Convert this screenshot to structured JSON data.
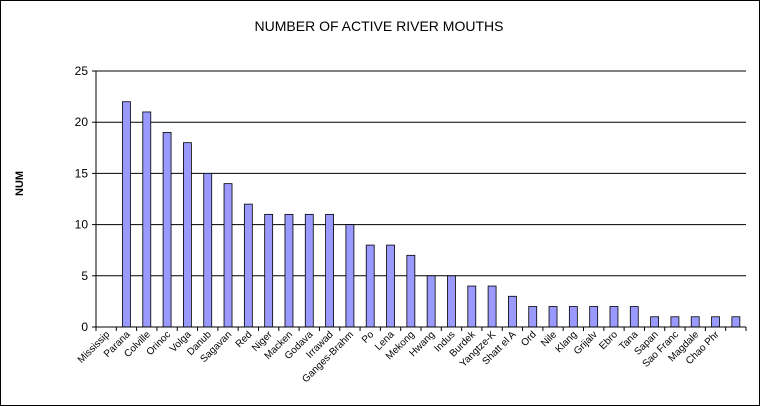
{
  "chart_data": {
    "type": "bar",
    "title": "NUMBER OF ACTIVE RIVER MOUTHS",
    "ylabel": "NUM",
    "xlabel": "",
    "ylim": [
      0,
      25
    ],
    "yticks": [
      0,
      5,
      10,
      15,
      20,
      25
    ],
    "grid": true,
    "bar_color": "#9999ff",
    "categories": [
      "Mississip",
      "Parana",
      "Colville",
      "Orinoc",
      "Volga",
      "Danub",
      "Sagavan",
      "Red",
      "Niger",
      "Macken",
      "Godava",
      "Irrawad",
      "Ganges-Brahm",
      "Po",
      "Lena",
      "Mekong",
      "Hwang",
      "Indus",
      "Burdek",
      "Yangtze-K",
      "Shatt el A",
      "Ord",
      "Nile",
      "Klang",
      "Grijalv",
      "Ebro",
      "Tana",
      "Sapan",
      "Sao Franc",
      "Magdale",
      "Chao Phr",
      ""
    ],
    "values": [
      0,
      22,
      21,
      19,
      18,
      15,
      14,
      12,
      11,
      11,
      11,
      11,
      10,
      8,
      8,
      7,
      5,
      5,
      4,
      4,
      3,
      2,
      2,
      2,
      2,
      2,
      2,
      1,
      1,
      1,
      1,
      1
    ]
  }
}
